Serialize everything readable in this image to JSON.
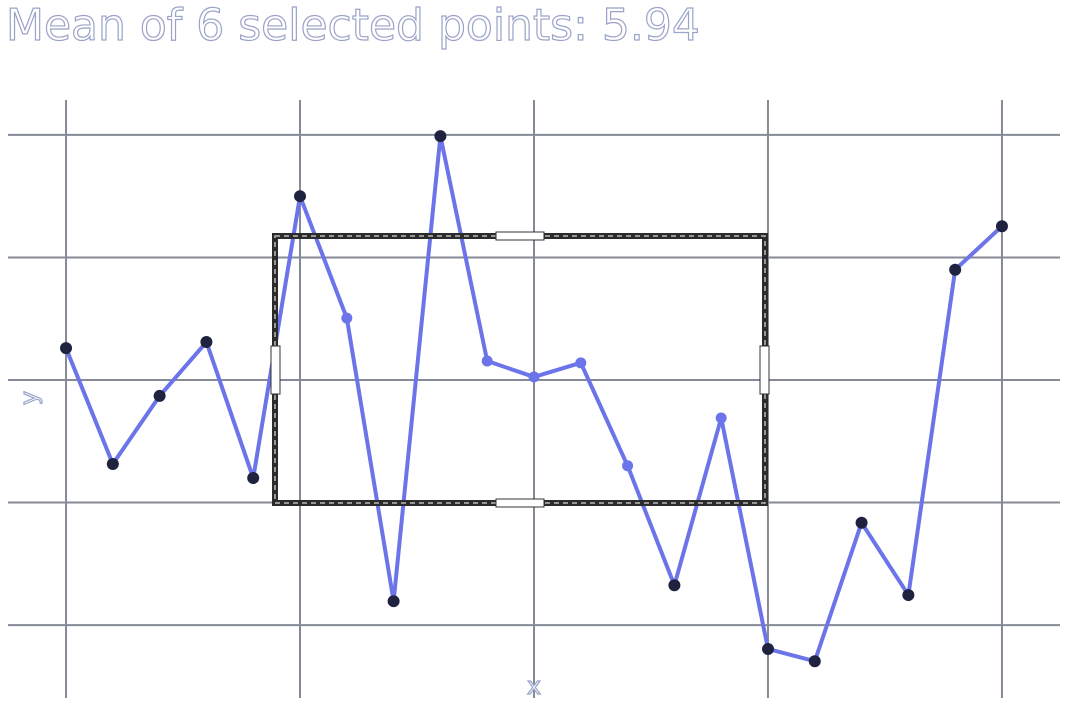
{
  "chart_data": {
    "type": "line",
    "title": "Mean of 6 selected points: 5.94",
    "x_label": "x",
    "y_label": "y",
    "x": [
      0,
      1,
      2,
      3,
      4,
      5,
      6,
      7,
      8,
      9,
      10,
      11,
      12,
      13,
      14,
      15,
      16,
      17,
      18,
      19,
      20
    ],
    "series": [
      {
        "color": "#6b74e8",
        "values": [
          6.52,
          4.63,
          5.74,
          6.62,
          4.4,
          9.0,
          7.01,
          2.39,
          9.98,
          6.31,
          6.05,
          6.28,
          4.6,
          2.65,
          5.38,
          1.61,
          1.41,
          3.67,
          2.49,
          7.8,
          8.51
        ]
      }
    ],
    "xlim": [
      -1.24,
      21.24
    ],
    "ylim": [
      0.81,
      10.57
    ],
    "xticks": [
      0,
      5,
      10,
      15,
      20
    ],
    "yticks": [
      2,
      4,
      6,
      8,
      10
    ],
    "grid": true
  }
}
